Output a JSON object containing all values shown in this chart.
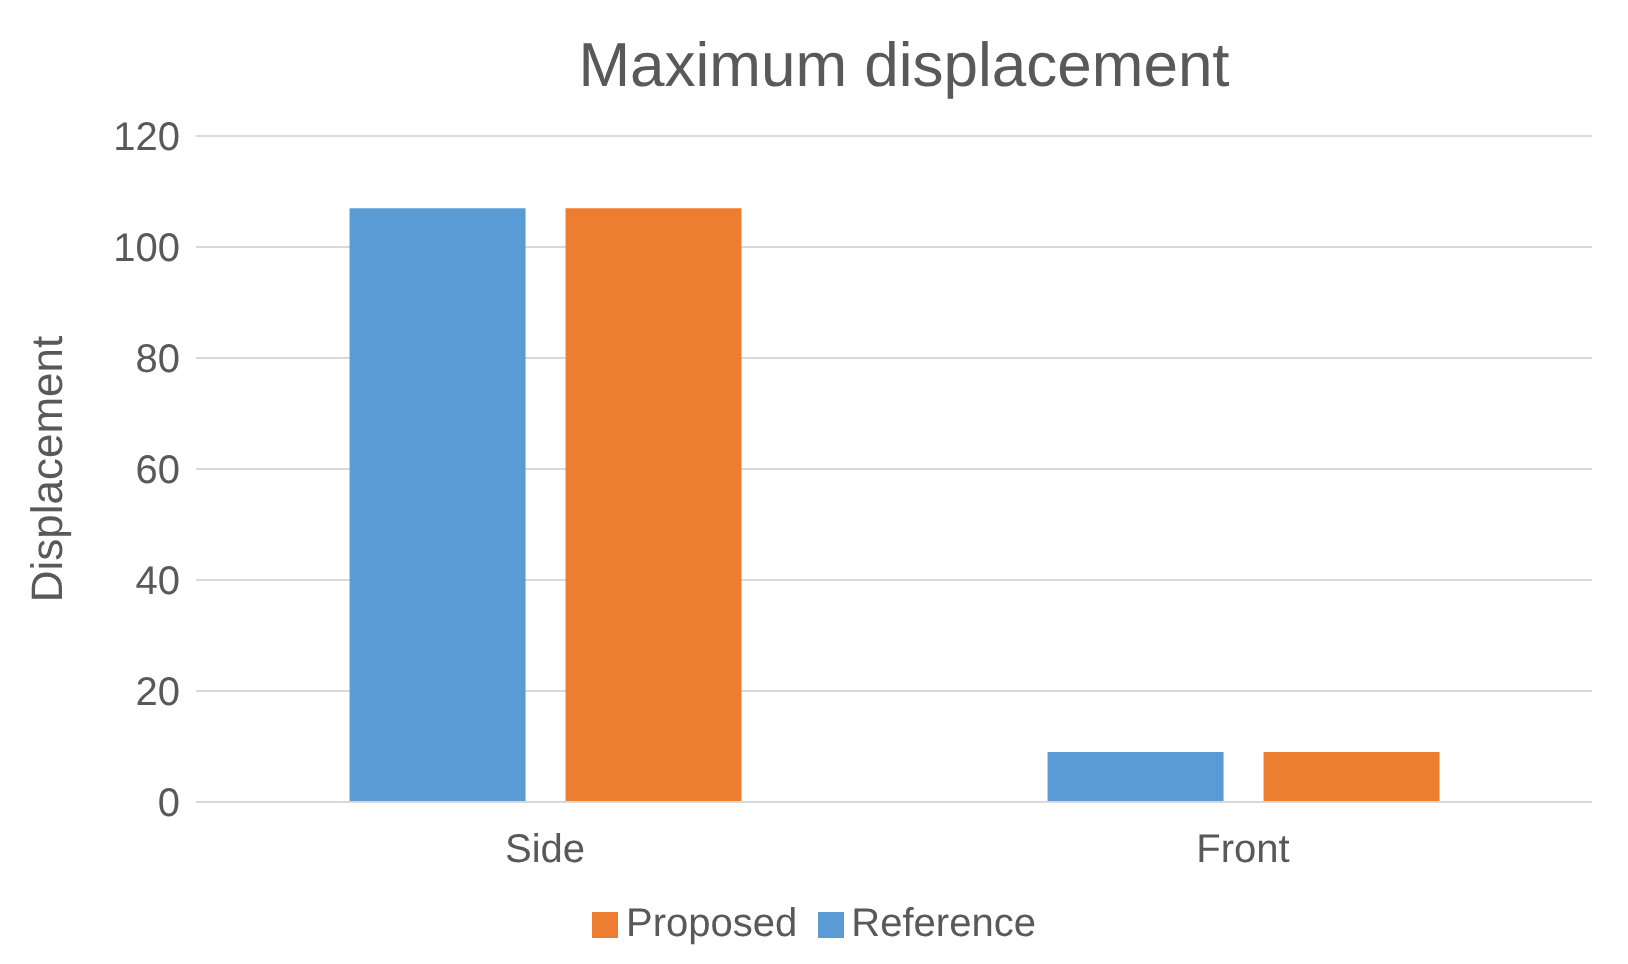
{
  "chart_data": {
    "type": "bar",
    "title": "Maximum displacement",
    "ylabel": "Displacement",
    "categories": [
      "Side",
      "Front"
    ],
    "series": [
      {
        "name": "Reference",
        "color": "#5b9bd5",
        "values": [
          107,
          9
        ]
      },
      {
        "name": "Proposed",
        "color": "#ed7d31",
        "values": [
          107,
          9
        ]
      }
    ],
    "ylim": [
      0,
      120
    ],
    "yticks": [
      0,
      20,
      40,
      60,
      80,
      100,
      120
    ],
    "grid": "y",
    "legend": "bottom"
  }
}
